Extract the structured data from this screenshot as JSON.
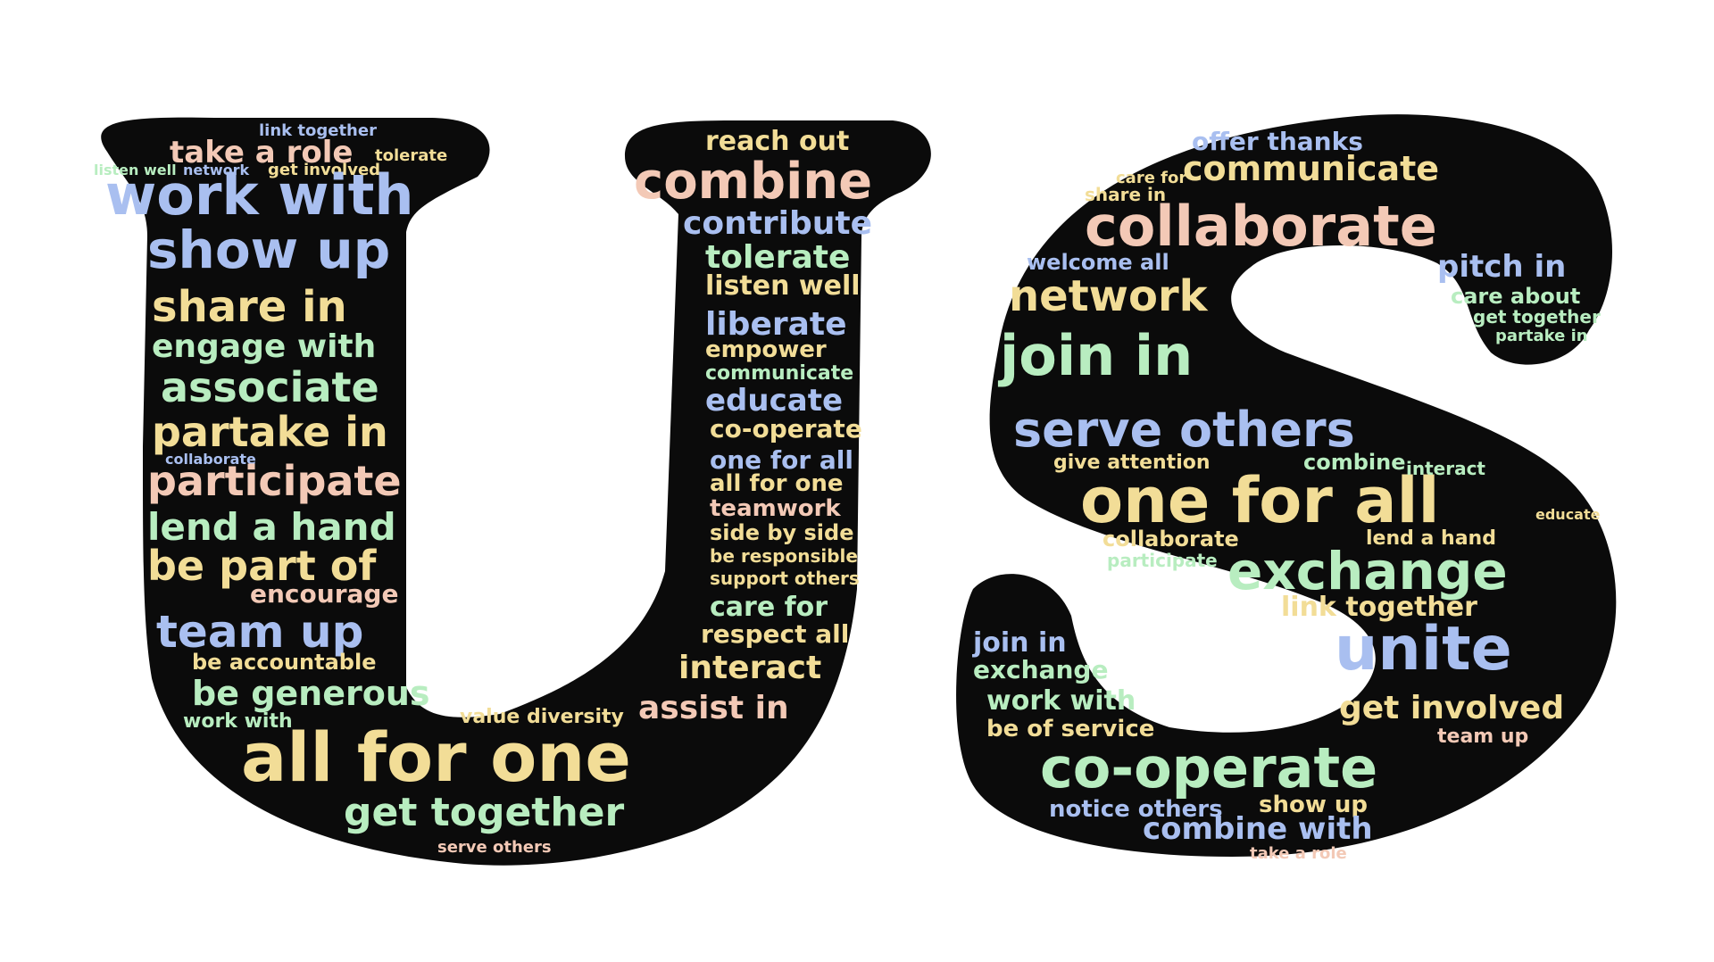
{
  "image": {
    "subject": "word cloud shaped as the letters U and S",
    "letters": [
      "U",
      "S"
    ],
    "background_color": "#ffffff",
    "shape_fill": "#0b0b0b",
    "word_colors": {
      "blue": "#a9bff0",
      "peach": "#f3c9b6",
      "yellow": "#f2dd97",
      "green": "#b8edc0"
    }
  },
  "words_u": [
    "link together",
    "take a role",
    "tolerate",
    "listen well",
    "network",
    "get involved",
    "work with",
    "show up",
    "share in",
    "engage with",
    "associate",
    "partake in",
    "collaborate",
    "participate",
    "lend a hand",
    "be part of",
    "encourage",
    "team up",
    "be accountable",
    "be generous",
    "work with",
    "all for one",
    "get together",
    "serve others",
    "reach out",
    "combine",
    "contribute",
    "tolerate",
    "listen well",
    "liberate",
    "empower",
    "communicate",
    "educate",
    "co-operate",
    "one for all",
    "all for one",
    "teamwork",
    "side by side",
    "be responsible",
    "support others",
    "care for",
    "respect all",
    "interact",
    "assist in",
    "value diversity"
  ],
  "words_s": [
    "offer thanks",
    "communicate",
    "care for",
    "share in",
    "collaborate",
    "welcome all",
    "pitch in",
    "network",
    "care about",
    "get together",
    "partake in",
    "join in",
    "serve others",
    "one for all",
    "give attention",
    "collaborate",
    "exchange",
    "link together",
    "unite",
    "join in",
    "exchange",
    "work with",
    "be of service",
    "get involved",
    "team up",
    "co-operate",
    "notice others",
    "show up",
    "combine with",
    "take a role",
    "combine",
    "interact",
    "educate",
    "lend a hand",
    "participate"
  ]
}
